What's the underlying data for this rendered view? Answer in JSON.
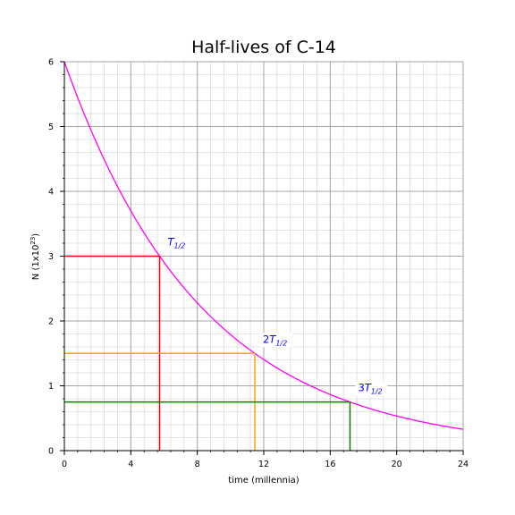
{
  "chart_data": {
    "type": "line",
    "title": "Half-lives of C-14",
    "xlabel": "time (millennia)",
    "ylabel_main": "N (1x10",
    "ylabel_exp": "23",
    "ylabel_close": ")",
    "xlim": [
      0,
      24
    ],
    "ylim": [
      0,
      6
    ],
    "xticks": [
      0,
      4,
      8,
      12,
      16,
      20,
      24
    ],
    "yticks": [
      0,
      1,
      2,
      3,
      4,
      5,
      6
    ],
    "grid": true,
    "minor_grid": true,
    "curve": {
      "color": "#ff00ff",
      "N0": 6,
      "half_life": 5.73,
      "x_range": [
        0,
        24
      ]
    },
    "markers": [
      {
        "t": 5.73,
        "N": 3.0,
        "color": "#ff0000",
        "label_prefix": "",
        "label_main": "T",
        "label_sub": "1/2",
        "label_color": "#0000ff"
      },
      {
        "t": 11.46,
        "N": 1.5,
        "color": "#ffa500",
        "label_prefix": "2",
        "label_main": "T",
        "label_sub": "1/2",
        "label_color": "#0000ff"
      },
      {
        "t": 17.19,
        "N": 0.75,
        "color": "#008000",
        "label_prefix": "3",
        "label_main": "T",
        "label_sub": "1/2",
        "label_color": "#0000ff"
      }
    ]
  }
}
